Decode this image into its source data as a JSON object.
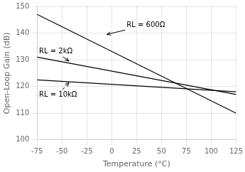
{
  "chart_data": {
    "type": "line",
    "xlabel": "Temperature (°C)",
    "ylabel": "Open-Loop Gain (dB)",
    "xlim": [
      -75,
      125
    ],
    "ylim": [
      100,
      150
    ],
    "xticks": [
      -75,
      -50,
      -25,
      0,
      25,
      50,
      75,
      100,
      125
    ],
    "yticks": [
      100,
      110,
      120,
      130,
      140,
      150
    ],
    "grid": true,
    "series": [
      {
        "color": "#000000",
        "x": [
          -75,
          125
        ],
        "values": [
          147,
          110
        ]
      },
      {
        "color": "#000000",
        "x": [
          -75,
          125
        ],
        "values": [
          131,
          117
        ]
      },
      {
        "color": "#000000",
        "x": [
          -75,
          125
        ],
        "values": [
          122.5,
          118
        ]
      }
    ],
    "annotations": [
      {
        "text": "RL = 600Ω",
        "xy": [
          -5,
          139.5
        ],
        "xytext": [
          15,
          143
        ],
        "line_style": "solid"
      },
      {
        "text": "RL = 2kΩ",
        "xy": [
          -43,
          129.5
        ],
        "xytext": [
          -73,
          133
        ],
        "line_style": "solid"
      },
      {
        "text": "RL = 10kΩ",
        "xy": [
          -43,
          121.5
        ],
        "xytext": [
          -73,
          117
        ],
        "line_style": "dashed"
      }
    ]
  }
}
